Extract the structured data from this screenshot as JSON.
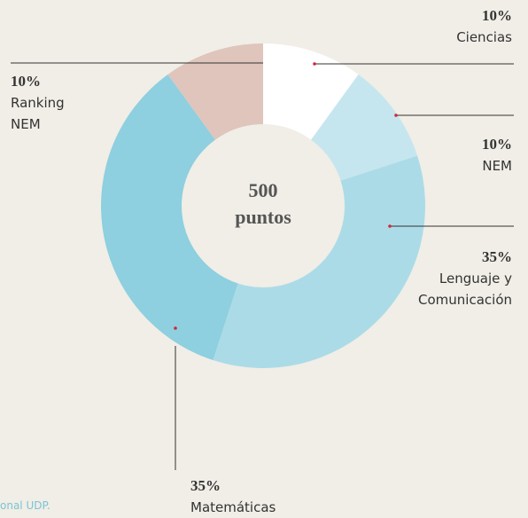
{
  "chart_data": {
    "type": "pie",
    "donut": true,
    "center_label": "500 puntos",
    "categories": [
      "Ciencias",
      "NEM",
      "Lenguaje y Comunicación",
      "Matemáticas",
      "Ranking NEM"
    ],
    "values": [
      10,
      10,
      35,
      35,
      10
    ],
    "value_labels": [
      "10%",
      "10%",
      "35%",
      "35%",
      "10%"
    ],
    "colors": [
      "#ffffff",
      "#c6e6ef",
      "#acdbe8",
      "#8ecfe0",
      "#dfc5bc"
    ],
    "source": "onal UDP."
  }
}
